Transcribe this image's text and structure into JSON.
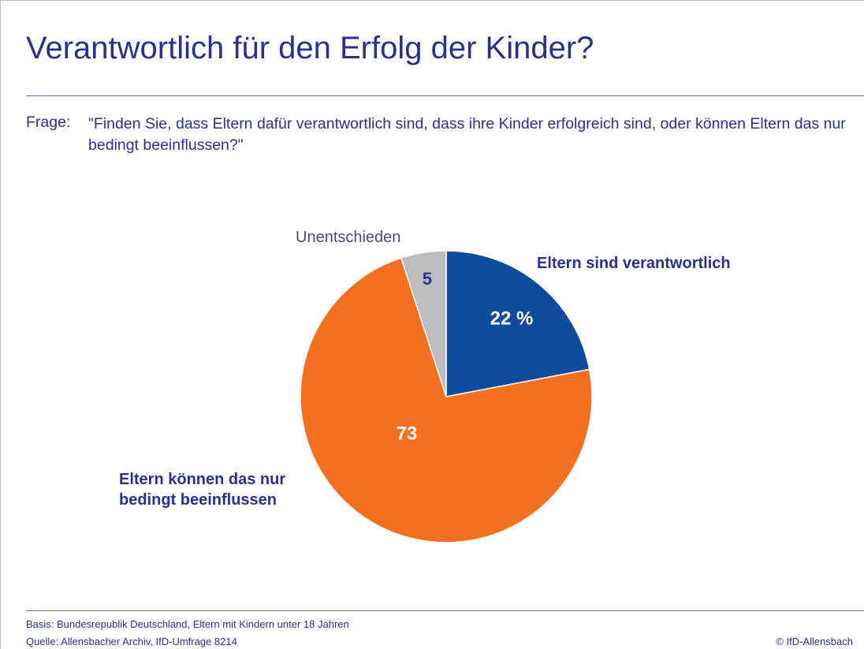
{
  "chart_data": {
    "type": "pie",
    "title": "Verantwortlich für den Erfolg der Kinder?",
    "question_label": "Frage:",
    "question": "\"Finden Sie, dass Eltern dafür verantwortlich sind, dass ihre Kinder erfolgreich sind, oder können Eltern das nur bedingt beeinflussen?\"",
    "categories": [
      "Eltern sind verantwortlich",
      "Eltern können das nur bedingt beeinflussen",
      "Unentschieden"
    ],
    "values": [
      22,
      73,
      5
    ],
    "value_labels": [
      "22 %",
      "73",
      "5"
    ],
    "colors": [
      "#0f4c9e",
      "#f37021",
      "#bcbdc0"
    ],
    "notes": [
      "Basis: Bundesrepublik Deutschland, Eltern mit Kindern unter 18 Jahren",
      "Quelle: Allensbacher Archiv, IfD-Umfrage 8214"
    ],
    "copyright": "© IfD-Allensbach"
  }
}
